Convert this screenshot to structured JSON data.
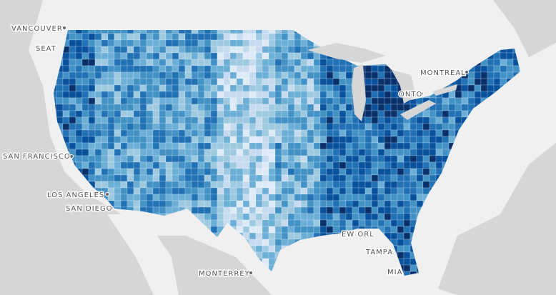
{
  "labels": [
    {
      "text": "VANCOUVER"
    },
    {
      "text": "SEAT"
    },
    {
      "text": "SAN FRANCISCO"
    },
    {
      "text": "LOS ANGELES"
    },
    {
      "text": "SAN DIEGO"
    },
    {
      "text": "MONTERREY"
    },
    {
      "text": "MONTREAL"
    },
    {
      "text": "ONTO"
    },
    {
      "text": "EW ORL"
    },
    {
      "text": "TAMPA"
    },
    {
      "text": "MIA"
    }
  ]
}
